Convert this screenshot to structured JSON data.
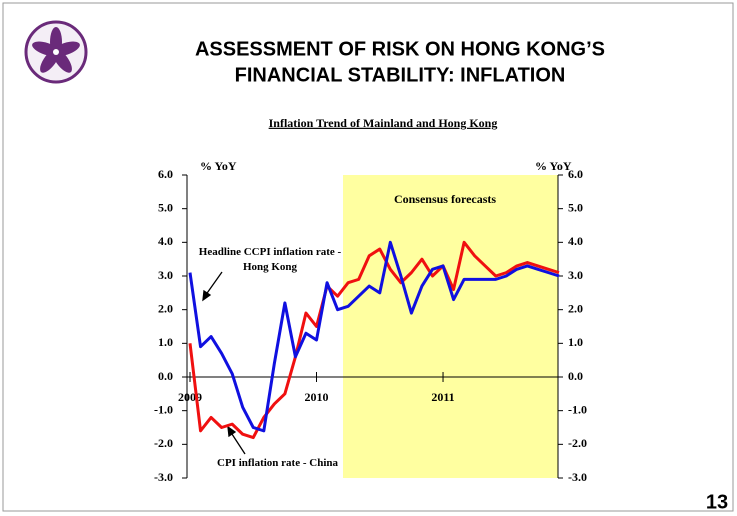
{
  "header": {
    "title_lines": [
      "ASSESSMENT OF RISK ON HONG KONG’S",
      "FINANCIAL STABILITY: INFLATION"
    ]
  },
  "page_number": "13",
  "chart_data": {
    "type": "line",
    "title": "Inflation Trend of Mainland and Hong Kong",
    "y_axis_label": "% YoY",
    "y2_axis_label": "% YoY",
    "annotations": [
      "Consensus forecasts"
    ],
    "categories": [
      "2009",
      null,
      null,
      null,
      null,
      null,
      null,
      null,
      null,
      null,
      null,
      null,
      "2010",
      null,
      null,
      null,
      null,
      null,
      null,
      null,
      null,
      null,
      null,
      null,
      "2011",
      null,
      null,
      null,
      null,
      null,
      null,
      null,
      null,
      null,
      null,
      null
    ],
    "series": [
      {
        "name": "Headline CCPI inflation rate - Hong Kong",
        "color": "#1010e0",
        "values": [
          3.1,
          0.9,
          1.2,
          0.7,
          0.1,
          -0.9,
          -1.5,
          -1.6,
          0.4,
          2.2,
          0.6,
          1.3,
          1.1,
          2.8,
          2.0,
          2.1,
          2.4,
          2.7,
          2.5,
          4.0,
          3.0,
          1.9,
          2.7,
          3.2,
          3.3,
          2.3,
          2.9,
          2.9,
          2.9,
          2.9,
          3.0,
          3.2,
          3.3,
          3.2,
          3.1,
          3.0
        ]
      },
      {
        "name": "CPI inflation rate - China",
        "color": "#f01010",
        "values": [
          1.0,
          -1.6,
          -1.2,
          -1.5,
          -1.4,
          -1.7,
          -1.8,
          -1.2,
          -0.8,
          -0.5,
          0.6,
          1.9,
          1.5,
          2.7,
          2.4,
          2.8,
          2.9,
          3.6,
          3.8,
          3.2,
          2.8,
          3.1,
          3.5,
          3.0,
          3.3,
          2.6,
          4.0,
          3.6,
          3.3,
          3.0,
          3.1,
          3.3,
          3.4,
          3.3,
          3.2,
          3.1
        ]
      }
    ],
    "ylim": [
      -3,
      6
    ],
    "yticks": [
      {
        "value": -3,
        "label": "-3.0"
      },
      {
        "value": -2,
        "label": "-2.0"
      },
      {
        "value": -1,
        "label": "-1.0"
      },
      {
        "value": 0,
        "label": "0.0"
      },
      {
        "value": 1,
        "label": "1.0"
      },
      {
        "value": 2,
        "label": "2.0"
      },
      {
        "value": 3,
        "label": "3.0"
      },
      {
        "value": 4,
        "label": "4.0"
      },
      {
        "value": 5,
        "label": "5.0"
      },
      {
        "value": 6,
        "label": "6.0"
      }
    ],
    "y2lim": [
      -3,
      6
    ],
    "y2ticks": [
      {
        "value": -3,
        "label": "-3.0"
      },
      {
        "value": -2,
        "label": "-2.0"
      },
      {
        "value": -1,
        "label": "-1.0"
      },
      {
        "value": 0,
        "label": "0.0"
      },
      {
        "value": 1,
        "label": "1.0"
      },
      {
        "value": 2,
        "label": "2.0"
      },
      {
        "value": 3,
        "label": "3.0"
      },
      {
        "value": 4,
        "label": "4.0"
      },
      {
        "value": 5,
        "label": "5.0"
      },
      {
        "value": 6,
        "label": "6.0"
      }
    ]
  }
}
